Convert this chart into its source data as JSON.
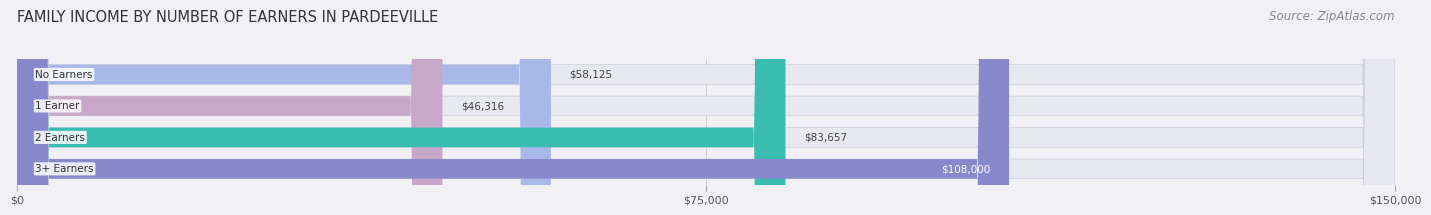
{
  "title": "FAMILY INCOME BY NUMBER OF EARNERS IN PARDEEVILLE",
  "source": "Source: ZipAtlas.com",
  "categories": [
    "No Earners",
    "1 Earner",
    "2 Earners",
    "3+ Earners"
  ],
  "values": [
    58125,
    46316,
    83657,
    108000
  ],
  "bar_colors": [
    "#a8b8e8",
    "#c8a8c8",
    "#3bbcb0",
    "#8888cc"
  ],
  "label_colors": [
    "#555555",
    "#555555",
    "#555555",
    "#ffffff"
  ],
  "value_labels": [
    "$58,125",
    "$46,316",
    "$83,657",
    "$108,000"
  ],
  "xlim": [
    0,
    150000
  ],
  "xticks": [
    0,
    75000,
    150000
  ],
  "xticklabels": [
    "$0",
    "$75,000",
    "$150,000"
  ],
  "background_color": "#f0f0f5",
  "bar_background_color": "#e8e8f0",
  "title_fontsize": 10.5,
  "source_fontsize": 8.5,
  "bar_height": 0.62,
  "figsize": [
    14.06,
    2.33
  ]
}
